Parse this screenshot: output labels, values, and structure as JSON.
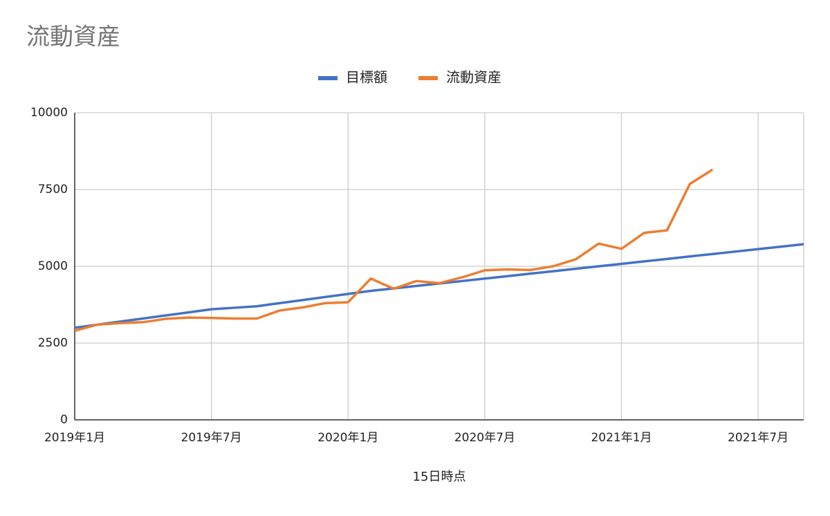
{
  "chart_data": {
    "type": "line",
    "title": "流動資産",
    "x_label": "15日時点",
    "categories": [
      "2019年1月",
      null,
      null,
      null,
      null,
      null,
      "2019年7月",
      null,
      null,
      null,
      null,
      null,
      "2020年1月",
      null,
      null,
      null,
      null,
      null,
      "2020年7月",
      null,
      null,
      null,
      null,
      null,
      "2021年1月",
      null,
      null,
      null,
      null,
      null,
      "2021年7月",
      null,
      null
    ],
    "series": [
      {
        "name": "目標額",
        "color": "#4472c4",
        "values": [
          3000,
          3100,
          3200,
          3300,
          3400,
          3500,
          3600,
          3650,
          3700,
          3800,
          3900,
          4000,
          4100,
          4200,
          4280,
          4360,
          4440,
          4520,
          4600,
          4680,
          4760,
          4840,
          4920,
          5000,
          5080,
          5160,
          5240,
          5320,
          5400,
          5480,
          5560,
          5640,
          5720
        ]
      },
      {
        "name": "流動資産",
        "color": "#ed7d31",
        "values": [
          2900,
          3100,
          3150,
          3180,
          3290,
          3330,
          3320,
          3300,
          3300,
          3560,
          3660,
          3800,
          3830,
          4600,
          4270,
          4520,
          4450,
          4640,
          4870,
          4900,
          4880,
          5000,
          5230,
          5740,
          5570,
          6090,
          6170,
          7680,
          8150,
          null,
          null,
          null,
          null
        ]
      }
    ],
    "ylim": [
      0,
      10000
    ],
    "yticks": [
      0,
      2500,
      5000,
      7500,
      10000
    ],
    "grid": true,
    "legend": "top"
  }
}
